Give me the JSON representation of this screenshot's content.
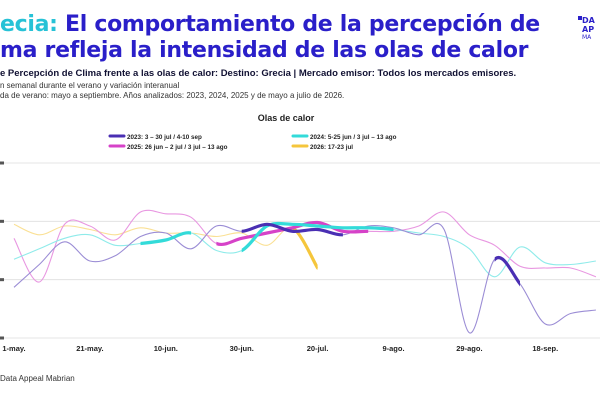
{
  "header": {
    "title_accent": "ecia:",
    "title_line1_rest": " El comportamiento de la percepción de",
    "title_line2": "ma refleja la intensidad de las olas de calor",
    "subtitle": "e Percepción de Clima frente a las olas de calor: Destino: Grecia | Mercado emisor: Todos los mercados emisores.",
    "meta_line1": "n semanal durante el verano y variación interanual",
    "meta_line2": "da de verano: mayo a septiembre. Años analizados: 2023, 2024, 2025 y de mayo a julio de 2026."
  },
  "logo": {
    "line1": "DA",
    "line2": "AP",
    "line3": "MA"
  },
  "source": "Data Appeal Mabrian",
  "colors": {
    "title": "#2a1fc9",
    "accent": "#27c2d6",
    "s2023": "#4a2fb3",
    "s2024": "#33dbd9",
    "s2025": "#d642c8",
    "s2026": "#f5c63c",
    "grid": "#dddddd"
  },
  "chart_data": {
    "type": "line",
    "title": "Olas de calor",
    "x_tick_labels": [
      "1-may.",
      "21-may.",
      "10-jun.",
      "30-jun.",
      "20-jul.",
      "9-ago.",
      "29-ago.",
      "18-sep."
    ],
    "x_tick_week_index": [
      0,
      3,
      6,
      9,
      12,
      15,
      18,
      21
    ],
    "y_gridlines": 4,
    "grid": true,
    "legend_placement": "top",
    "legend": [
      {
        "label": "2023: 3 – 30 jul / 4-10 sep",
        "series": "2023"
      },
      {
        "label": "2024: 5-25 jun / 3 jul – 13 ago",
        "series": "2024"
      },
      {
        "label": "2025: 26 jun – 2 jul / 3 jul – 13 ago",
        "series": "2025"
      },
      {
        "label": "2026: 17-23 jul",
        "series": "2026"
      }
    ],
    "y_relative": {
      "min": 0,
      "max": 100
    },
    "series": [
      {
        "name": "2023",
        "values": [
          29,
          42,
          55,
          44,
          47,
          58,
          60,
          51,
          64,
          61,
          65,
          61,
          62,
          59,
          64,
          63,
          59,
          62,
          3,
          45,
          31,
          8,
          14,
          16
        ],
        "heatwave_ranges": [
          [
            9,
            13
          ],
          [
            19,
            20
          ]
        ]
      },
      {
        "name": "2024",
        "values": [
          45,
          51,
          57,
          59,
          53,
          54,
          56,
          60,
          50,
          50,
          64,
          65,
          64,
          63,
          63,
          62,
          60,
          58,
          51,
          35,
          52,
          43,
          42,
          44
        ],
        "heatwave_ranges": [
          [
            5,
            7
          ],
          [
            9,
            15
          ]
        ]
      },
      {
        "name": "2025",
        "values": [
          57,
          32,
          65,
          64,
          56,
          72,
          71,
          69,
          54,
          57,
          60,
          63,
          66,
          61,
          61,
          61,
          64,
          72,
          59,
          53,
          41,
          40,
          40,
          35
        ],
        "heatwave_ranges": [
          [
            8,
            14
          ]
        ]
      },
      {
        "name": "2026",
        "values": [
          65,
          59,
          64,
          62,
          59,
          63,
          60,
          60,
          58,
          60,
          53,
          63,
          40
        ],
        "heatwave_ranges": [
          [
            11,
            12
          ]
        ]
      }
    ]
  }
}
